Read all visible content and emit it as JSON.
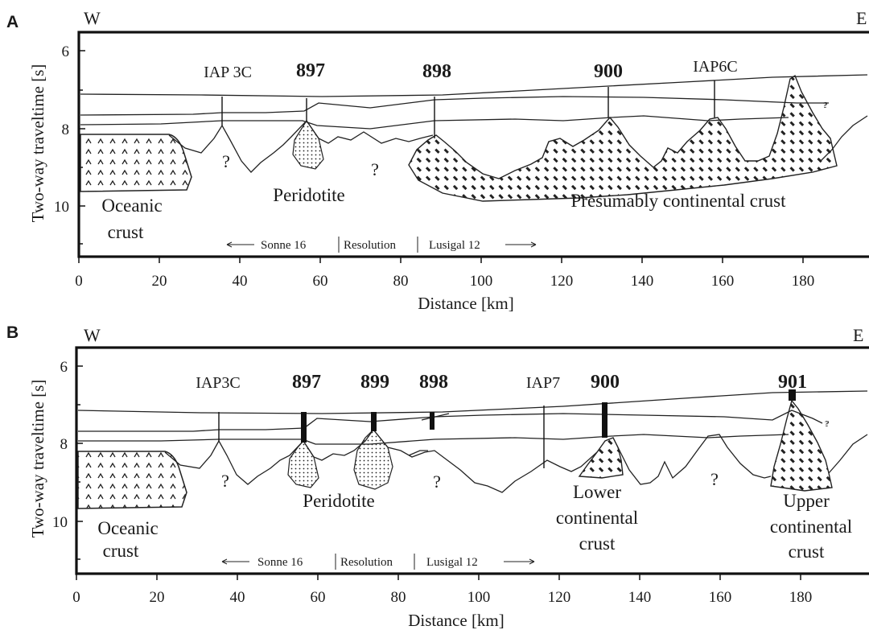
{
  "panels": [
    {
      "label": "A",
      "west": "W",
      "east": "E",
      "ylabel": "Two-way traveltime [s]",
      "xlabel": "Distance [km]",
      "y_ticks": [
        "6",
        "8",
        "10"
      ],
      "x_ticks": [
        "0",
        "20",
        "40",
        "60",
        "80",
        "100",
        "120",
        "140",
        "160",
        "180"
      ],
      "sites": [
        "IAP 3C",
        "897",
        "898",
        "900",
        "IAP6C"
      ],
      "regions": {
        "oceanic_1": "Oceanic",
        "oceanic_2": "crust",
        "peridotite": "Peridotite",
        "continental": "Presumably continental crust"
      },
      "question_marks": [
        "?",
        "?",
        "?"
      ],
      "surveys": [
        "Sonne 16",
        "Resolution",
        "Lusigal 12"
      ]
    },
    {
      "label": "B",
      "west": "W",
      "east": "E",
      "ylabel": "Two-way traveltime [s]",
      "xlabel": "Distance [km]",
      "y_ticks": [
        "6",
        "8",
        "10"
      ],
      "x_ticks": [
        "0",
        "20",
        "40",
        "60",
        "80",
        "100",
        "120",
        "140",
        "160",
        "180"
      ],
      "sites": [
        "IAP3C",
        "897",
        "899",
        "898",
        "IAP7",
        "900",
        "901"
      ],
      "regions": {
        "oceanic_1": "Oceanic",
        "oceanic_2": "crust",
        "peridotite": "Peridotite",
        "lower_1": "Lower",
        "lower_2": "continental",
        "lower_3": "crust",
        "upper_1": "Upper",
        "upper_2": "continental",
        "upper_3": "crust"
      },
      "question_marks": [
        "?",
        "?",
        "?",
        "?"
      ],
      "surveys": [
        "Sonne 16",
        "Resolution",
        "Lusigal 12"
      ]
    }
  ]
}
